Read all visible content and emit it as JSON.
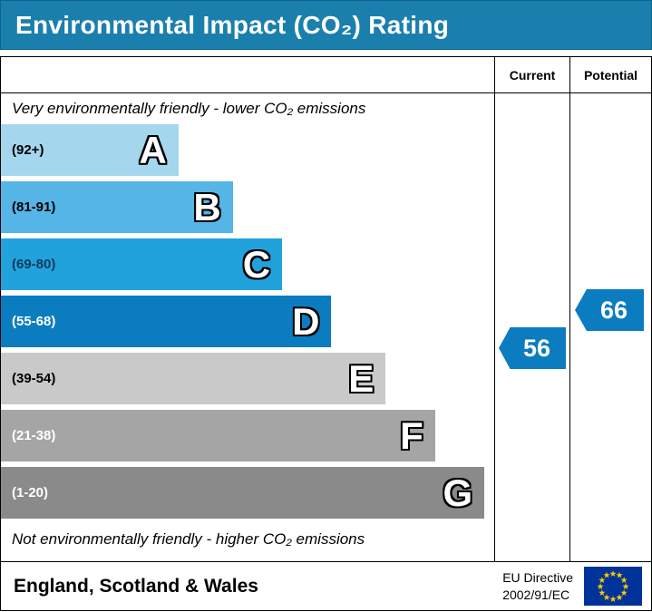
{
  "title": "Environmental Impact (CO₂) Rating",
  "colors": {
    "title_bg": "#1b7fad",
    "marker": "#0b7cc0",
    "flag_bg": "#003399",
    "flag_star": "#ffcc00"
  },
  "columns": {
    "current": "Current",
    "potential": "Potential"
  },
  "notes": {
    "top": "Very environmentally friendly - lower CO₂ emissions",
    "bottom": "Not environmentally friendly - higher CO₂ emissions"
  },
  "footer": {
    "region": "England, Scotland & Wales",
    "directive_line1": "EU Directive",
    "directive_line2": "2002/91/EC"
  },
  "chart_data": {
    "type": "bar",
    "title": "Environmental Impact (CO₂) Rating",
    "categories": [
      "A",
      "B",
      "C",
      "D",
      "E",
      "F",
      "G"
    ],
    "bands": [
      {
        "letter": "A",
        "range": "(92+)",
        "color": "#a4d7ee",
        "range_color": "#000000",
        "width_pct": 36
      },
      {
        "letter": "B",
        "range": "(81-91)",
        "color": "#55b5e6",
        "range_color": "#000000",
        "width_pct": 47
      },
      {
        "letter": "C",
        "range": "(69-80)",
        "color": "#22a2dd",
        "range_color": "#0d3a5c",
        "width_pct": 57
      },
      {
        "letter": "D",
        "range": "(55-68)",
        "color": "#0b7cc0",
        "range_color": "#ffffff",
        "width_pct": 67
      },
      {
        "letter": "E",
        "range": "(39-54)",
        "color": "#c9c9c9",
        "range_color": "#000000",
        "width_pct": 78
      },
      {
        "letter": "F",
        "range": "(21-38)",
        "color": "#a5a5a5",
        "range_color": "#ffffff",
        "width_pct": 88
      },
      {
        "letter": "G",
        "range": "(1-20)",
        "color": "#8a8a8a",
        "range_color": "#ffffff",
        "width_pct": 98
      }
    ],
    "current": {
      "value": 56,
      "band": "D"
    },
    "potential": {
      "value": 66,
      "band": "D"
    }
  }
}
